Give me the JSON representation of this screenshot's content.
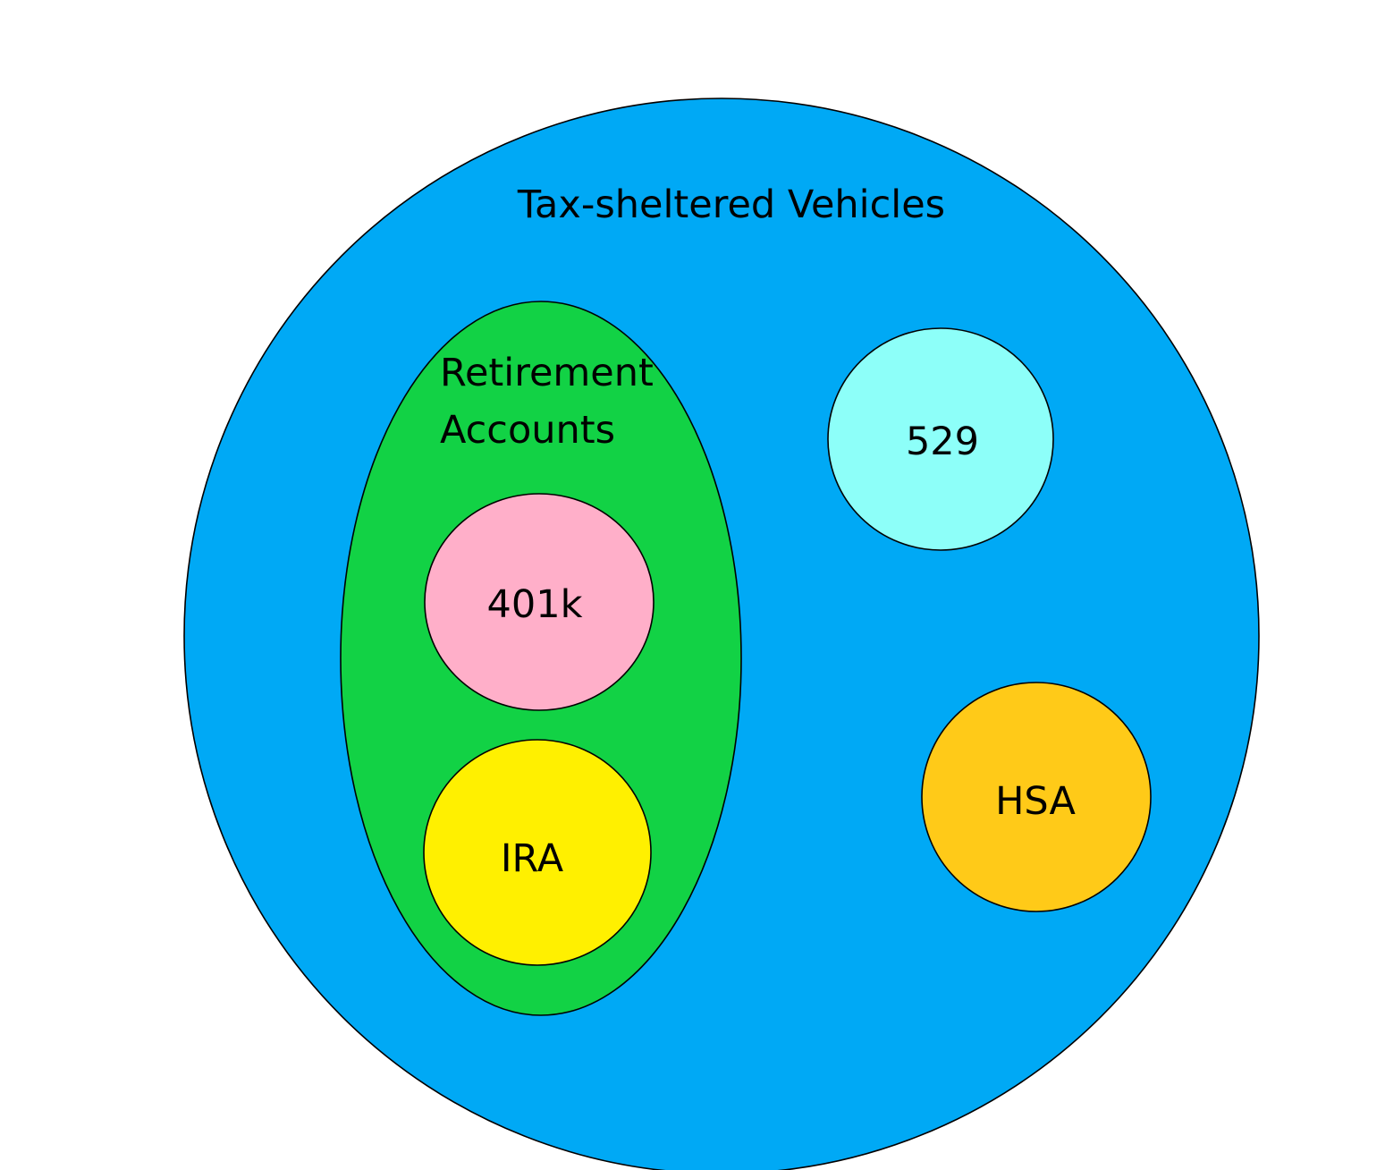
{
  "diagram": {
    "outer": {
      "label": "Tax-sheltered Vehicles",
      "color": "#00A9F5"
    },
    "retirement": {
      "label_line1": "Retirement",
      "label_line2": "Accounts",
      "color": "#12D245"
    },
    "k401": {
      "label": "401k",
      "color": "#FFAFC9"
    },
    "ira": {
      "label": "IRA",
      "color": "#FFF000"
    },
    "plan529": {
      "label": "529",
      "color": "#8DFFF9"
    },
    "hsa": {
      "label": "HSA",
      "color": "#FFCA18"
    }
  }
}
